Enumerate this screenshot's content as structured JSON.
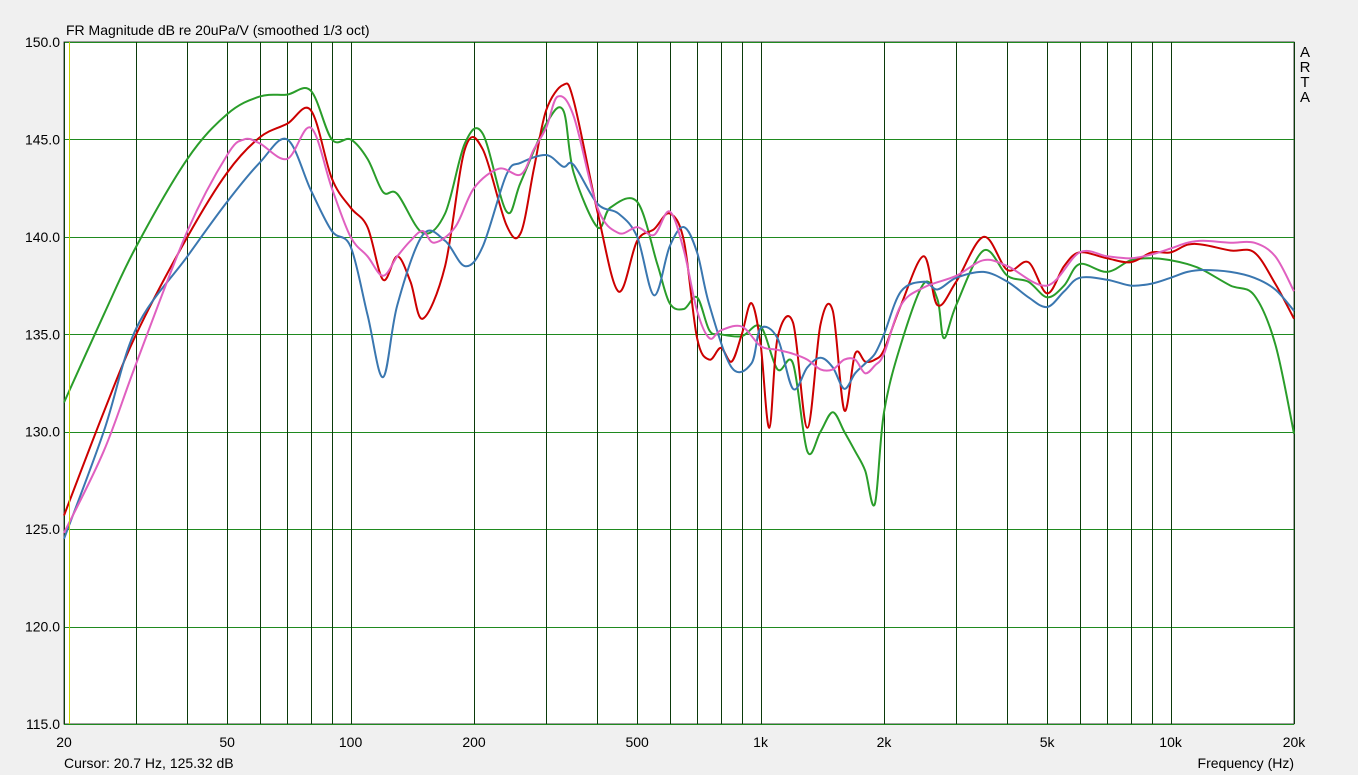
{
  "chart_data": {
    "type": "line",
    "title": "FR Magnitude dB re 20uPa/V (smoothed 1/3 oct)",
    "xlabel": "Frequency (Hz)",
    "ylabel": "",
    "x_scale": "log",
    "xlim": [
      20,
      20000
    ],
    "ylim": [
      115,
      150
    ],
    "grid": true,
    "y_ticks": [
      "115.0",
      "120.0",
      "125.0",
      "130.0",
      "135.0",
      "140.0",
      "145.0",
      "150.0"
    ],
    "x_ticks": [
      {
        "value": 20,
        "label": "20"
      },
      {
        "value": 50,
        "label": "50"
      },
      {
        "value": 100,
        "label": "100"
      },
      {
        "value": 200,
        "label": "200"
      },
      {
        "value": 500,
        "label": "500"
      },
      {
        "value": 1000,
        "label": "1k"
      },
      {
        "value": 2000,
        "label": "2k"
      },
      {
        "value": 5000,
        "label": "5k"
      },
      {
        "value": 10000,
        "label": "10k"
      },
      {
        "value": 20000,
        "label": "20k"
      }
    ],
    "watermark": "A R T A",
    "cursor_text": "Cursor: 20.7 Hz, 125.32 dB",
    "series": [
      {
        "color": "#2a9d2a",
        "x": [
          20,
          25,
          30,
          40,
          50,
          60,
          70,
          80,
          90,
          100,
          110,
          120,
          130,
          150,
          170,
          190,
          210,
          240,
          260,
          300,
          330,
          350,
          400,
          430,
          500,
          560,
          600,
          650,
          700,
          750,
          800,
          900,
          1000,
          1100,
          1200,
          1300,
          1400,
          1500,
          1600,
          1700,
          1800,
          1900,
          2000,
          2200,
          2500,
          2700,
          2800,
          3000,
          3500,
          4000,
          4500,
          5000,
          5500,
          6000,
          7000,
          8000,
          9000,
          10000,
          11000,
          12000,
          14000,
          16000,
          18000,
          20000
        ],
        "y": [
          131.5,
          136,
          139.5,
          144,
          146.3,
          147.2,
          147.3,
          147.5,
          145,
          145,
          144,
          142.3,
          142.2,
          140.2,
          141.2,
          144.8,
          145.3,
          141.3,
          142.8,
          145.8,
          146.5,
          143.3,
          140.5,
          141.5,
          141.8,
          138.6,
          136.6,
          136.3,
          136.9,
          135.2,
          135,
          134.9,
          135.4,
          133.2,
          133.5,
          129,
          130,
          131,
          130,
          129,
          128,
          126.3,
          131,
          134.5,
          137.6,
          136.8,
          134.8,
          136.5,
          139.3,
          138,
          137.7,
          136.9,
          137.5,
          138.6,
          138.2,
          138.8,
          138.9,
          138.8,
          138.6,
          138.3,
          137.5,
          137,
          134.5,
          129.9
        ]
      },
      {
        "color": "#cc0000",
        "x": [
          20,
          25,
          30,
          40,
          50,
          60,
          70,
          80,
          90,
          100,
          110,
          120,
          130,
          140,
          150,
          170,
          190,
          210,
          240,
          260,
          280,
          300,
          330,
          350,
          400,
          450,
          500,
          550,
          600,
          650,
          700,
          750,
          800,
          850,
          900,
          950,
          1000,
          1050,
          1100,
          1200,
          1300,
          1400,
          1500,
          1600,
          1700,
          1800,
          1900,
          2000,
          2200,
          2500,
          2700,
          3000,
          3500,
          4000,
          4500,
          5000,
          5500,
          6000,
          7000,
          8000,
          9000,
          10000,
          11000,
          12000,
          14000,
          16000,
          18000,
          20000
        ],
        "y": [
          125.7,
          131,
          135,
          140,
          143.3,
          145.1,
          145.8,
          146.5,
          143,
          141.5,
          140.5,
          137.8,
          139,
          137.7,
          135.8,
          138.5,
          144.5,
          144.5,
          140.6,
          140.2,
          143.5,
          146.5,
          147.8,
          147,
          141.3,
          137.2,
          139.8,
          140.4,
          141.2,
          139.8,
          134.8,
          133.7,
          134.3,
          133.6,
          135,
          136.6,
          134.5,
          130.2,
          134.8,
          135.6,
          130.2,
          135.5,
          136.2,
          131.1,
          134,
          133.6,
          133.7,
          134.2,
          136.5,
          139,
          136.5,
          137.7,
          140,
          138.3,
          138.7,
          137.1,
          138.5,
          139.2,
          138.9,
          138.7,
          139.2,
          139.2,
          139.6,
          139.6,
          139.3,
          139.2,
          137.6,
          135.8
        ]
      },
      {
        "color": "#3a77b0",
        "x": [
          20,
          25,
          30,
          40,
          50,
          60,
          70,
          80,
          90,
          100,
          110,
          120,
          130,
          150,
          170,
          190,
          210,
          240,
          260,
          300,
          330,
          350,
          400,
          450,
          500,
          550,
          600,
          650,
          700,
          750,
          850,
          950,
          1000,
          1100,
          1200,
          1300,
          1400,
          1500,
          1600,
          1700,
          1800,
          1900,
          2000,
          2200,
          2500,
          2700,
          3000,
          3500,
          4000,
          4500,
          5000,
          5500,
          6000,
          7000,
          8000,
          9000,
          10000,
          11000,
          12000,
          14000,
          16000,
          18000,
          20000
        ],
        "y": [
          124.5,
          130,
          135.3,
          139,
          141.8,
          143.8,
          145,
          142.4,
          140.3,
          139.5,
          136,
          132.8,
          136.5,
          140.1,
          139.8,
          138.5,
          139.5,
          143.2,
          143.8,
          144.2,
          143.6,
          143.7,
          141.7,
          141.2,
          140,
          137,
          139.5,
          140.5,
          139.2,
          136.5,
          133.3,
          133.5,
          135.3,
          134.8,
          132.2,
          133.3,
          133.8,
          133.3,
          132.2,
          133,
          133.5,
          134,
          135,
          137.2,
          137.7,
          137.3,
          137.9,
          138.2,
          137.7,
          136.9,
          136.4,
          137.2,
          137.9,
          137.8,
          137.5,
          137.6,
          137.9,
          138.2,
          138.3,
          138.2,
          137.9,
          137.3,
          136.2
        ]
      },
      {
        "color": "#e060c0",
        "x": [
          20,
          25,
          30,
          40,
          50,
          55,
          60,
          70,
          80,
          90,
          100,
          110,
          120,
          130,
          140,
          150,
          160,
          180,
          200,
          230,
          260,
          280,
          300,
          320,
          350,
          400,
          450,
          500,
          550,
          600,
          650,
          700,
          750,
          800,
          900,
          1000,
          1100,
          1200,
          1300,
          1400,
          1500,
          1600,
          1700,
          1800,
          1900,
          2000,
          2200,
          2500,
          3000,
          3500,
          4000,
          5000,
          6000,
          7000,
          8000,
          9000,
          10000,
          11000,
          12000,
          14000,
          16000,
          18000,
          20000
        ],
        "y": [
          124.8,
          129,
          133.5,
          140.3,
          144.2,
          145,
          144.8,
          144,
          145.6,
          142.5,
          140,
          139,
          138,
          139,
          139.8,
          140.3,
          139.7,
          140.5,
          142.5,
          143.5,
          143.2,
          144.5,
          145.6,
          147.2,
          146.2,
          141.5,
          140.2,
          140.5,
          140.1,
          141.3,
          139.3,
          136.2,
          134.8,
          135.2,
          135.4,
          134.4,
          134.2,
          134,
          133.7,
          133.2,
          133.2,
          133.7,
          133.7,
          133,
          133.4,
          134,
          136.5,
          137.4,
          138,
          138.8,
          138.5,
          137.5,
          139.2,
          139,
          138.9,
          139.1,
          139.4,
          139.7,
          139.8,
          139.7,
          139.7,
          139,
          137.2
        ]
      }
    ]
  }
}
